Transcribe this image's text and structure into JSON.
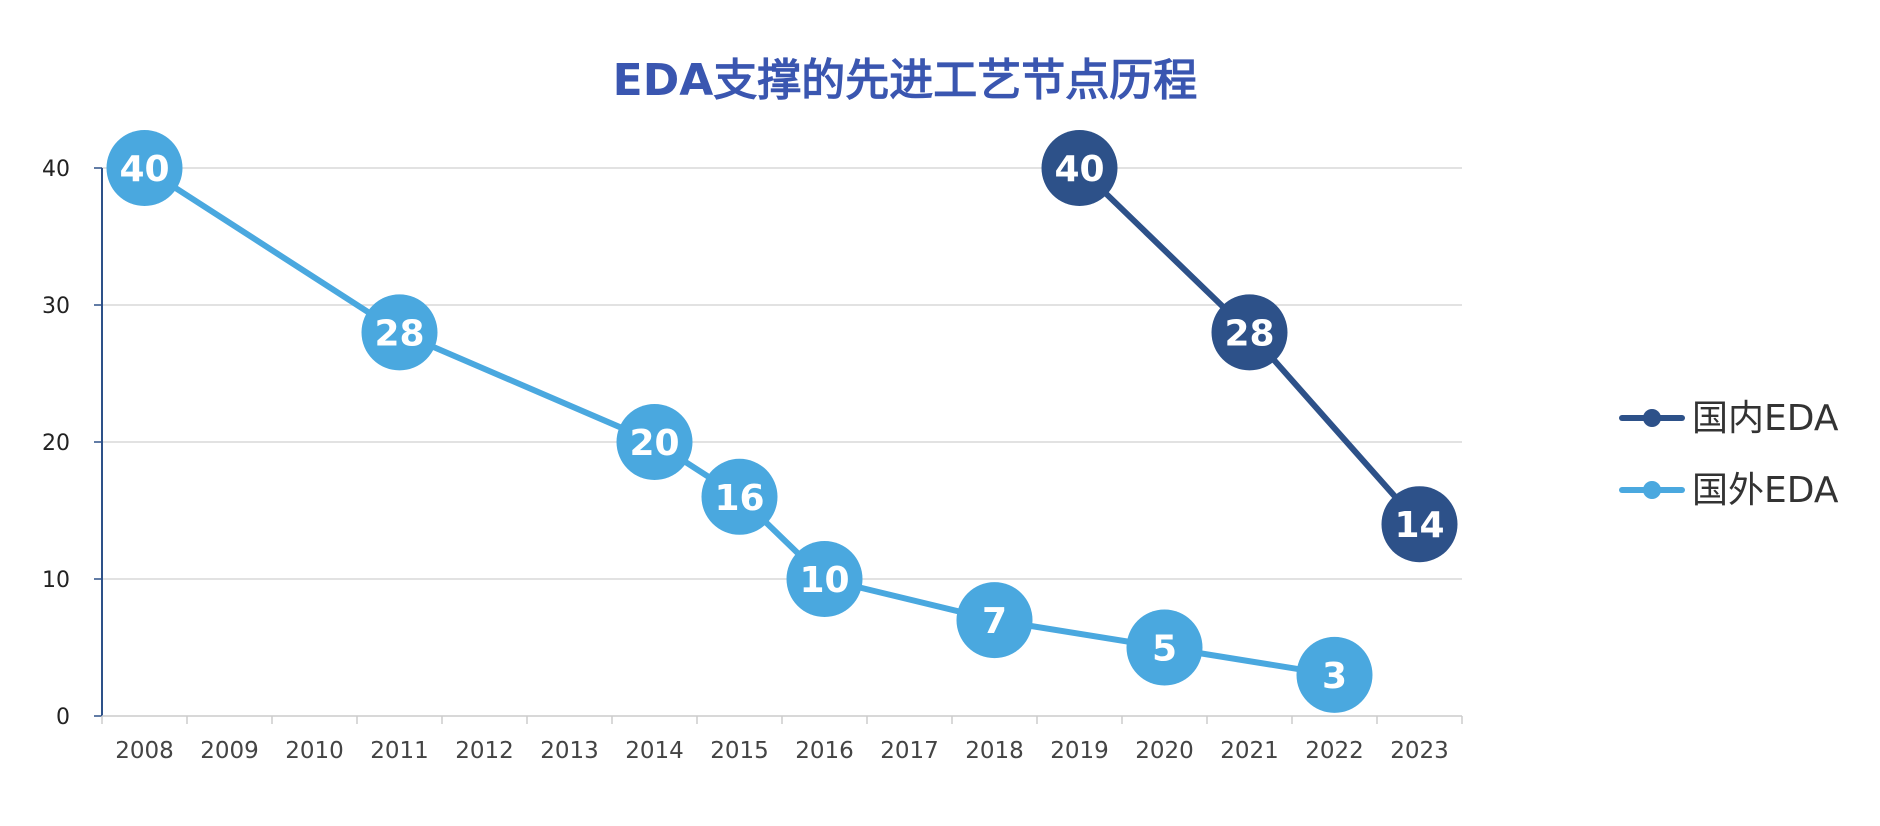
{
  "chart_data": {
    "type": "line",
    "title": "EDA支撑的先进工艺节点历程",
    "xlabel": "",
    "ylabel": "",
    "categories": [
      "2008",
      "2009",
      "2010",
      "2011",
      "2012",
      "2013",
      "2014",
      "2015",
      "2016",
      "2017",
      "2018",
      "2019",
      "2020",
      "2021",
      "2022",
      "2023"
    ],
    "ylim": [
      0,
      40
    ],
    "yticks": [
      0,
      10,
      20,
      30,
      40
    ],
    "grid": true,
    "legend_position": "right",
    "series": [
      {
        "name": "国内EDA",
        "color": "#2d5189",
        "points": [
          {
            "x": "2019",
            "y": 40
          },
          {
            "x": "2021",
            "y": 28
          },
          {
            "x": "2023",
            "y": 14
          }
        ]
      },
      {
        "name": "国外EDA",
        "color": "#4aa8df",
        "points": [
          {
            "x": "2008",
            "y": 40
          },
          {
            "x": "2011",
            "y": 28
          },
          {
            "x": "2014",
            "y": 20
          },
          {
            "x": "2015",
            "y": 16
          },
          {
            "x": "2016",
            "y": 10
          },
          {
            "x": "2018",
            "y": 7
          },
          {
            "x": "2020",
            "y": 5
          },
          {
            "x": "2022",
            "y": 3
          }
        ]
      }
    ]
  }
}
